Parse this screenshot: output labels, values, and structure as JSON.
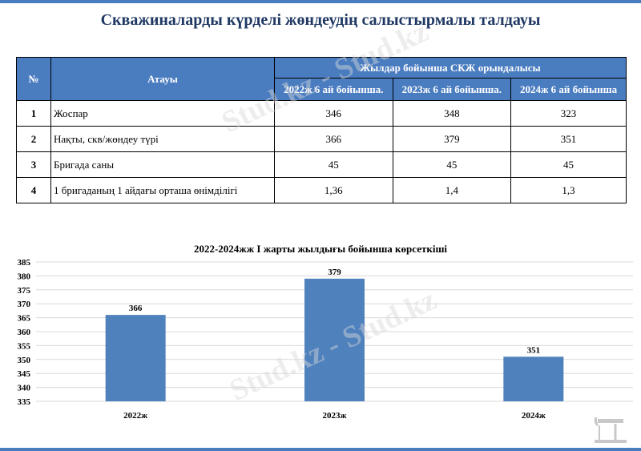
{
  "title": "Скважиналарды күрделі жөндеудің салыстырмалы талдауы",
  "table": {
    "num_header": "№",
    "name_header": "Атауы",
    "group_header": "Жылдар бойынша СКЖ орындалысы",
    "year_headers": [
      "2022ж 6 ай бойынша.",
      "2023ж 6 ай бойынша.",
      "2024ж 6 ай бойынша"
    ],
    "rows": [
      {
        "num": "1",
        "name": "Жоспар",
        "v1": "346",
        "v2": "348",
        "v3": "323"
      },
      {
        "num": "2",
        "name": "Нақты, скв/жөндеу түрі",
        "v1": "366",
        "v2": "379",
        "v3": "351"
      },
      {
        "num": "3",
        "name": "Бригада саны",
        "v1": "45",
        "v2": "45",
        "v3": "45"
      },
      {
        "num": "4",
        "name": "1 бригаданың 1 айдағы орташа өнімділігі",
        "v1": "1,36",
        "v2": "1,4",
        "v3": "1,3"
      }
    ]
  },
  "watermark_text": "Stud.kz - Stud.kz",
  "chart_data": {
    "type": "bar",
    "title": "2022-2024жж I жарты жылдығы бойынша көрсеткіші",
    "categories": [
      "2022ж",
      "2023ж",
      "2024ж"
    ],
    "values": [
      366,
      379,
      351
    ],
    "ylim": [
      335,
      385
    ],
    "yticks": [
      335,
      340,
      345,
      350,
      355,
      360,
      365,
      370,
      375,
      380,
      385
    ],
    "grid": true,
    "bar_color": "#4f81bd"
  }
}
